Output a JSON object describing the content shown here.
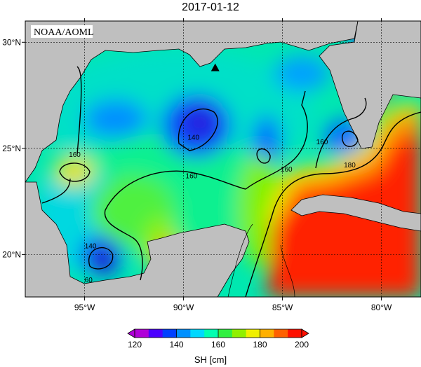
{
  "title": "2017-01-12",
  "source_label": "NOAA/AOML",
  "map": {
    "lon_range": [
      -98,
      -78
    ],
    "lat_range": [
      18,
      31
    ],
    "lon_ticks": [
      {
        "value": -95,
        "label": "95°W"
      },
      {
        "value": -90,
        "label": "90°W"
      },
      {
        "value": -85,
        "label": "85°W"
      },
      {
        "value": -80,
        "label": "80°W"
      }
    ],
    "lat_ticks": [
      {
        "value": 20,
        "label": "20°N"
      },
      {
        "value": 25,
        "label": "25°N"
      },
      {
        "value": 30,
        "label": "30°N"
      }
    ],
    "grid": true,
    "contour_labels": [
      {
        "text": "140",
        "lon": -89.5,
        "lat": 25.4
      },
      {
        "text": "140",
        "lon": -94.7,
        "lat": 20.3
      },
      {
        "text": "160",
        "lon": -95.5,
        "lat": 24.6
      },
      {
        "text": "160",
        "lon": -89.6,
        "lat": 23.6
      },
      {
        "text": "160",
        "lon": -84.8,
        "lat": 23.9
      },
      {
        "text": "160",
        "lon": -83.0,
        "lat": 25.2
      },
      {
        "text": "180",
        "lon": -81.6,
        "lat": 24.1
      },
      {
        "text": "60",
        "lon": -94.8,
        "lat": 18.7
      }
    ],
    "marker": {
      "type": "triangle",
      "lon": -88.4,
      "lat": 28.8
    }
  },
  "colorbar": {
    "label": "SH [cm]",
    "min": 120,
    "max": 200,
    "ticks": [
      "120",
      "140",
      "160",
      "180",
      "200"
    ],
    "colors": [
      "#b000d8",
      "#4a00ff",
      "#0040ff",
      "#0090ff",
      "#00d8ff",
      "#00ffb0",
      "#30f040",
      "#90f000",
      "#f0f000",
      "#ffb000",
      "#ff6000",
      "#ff1000"
    ]
  }
}
